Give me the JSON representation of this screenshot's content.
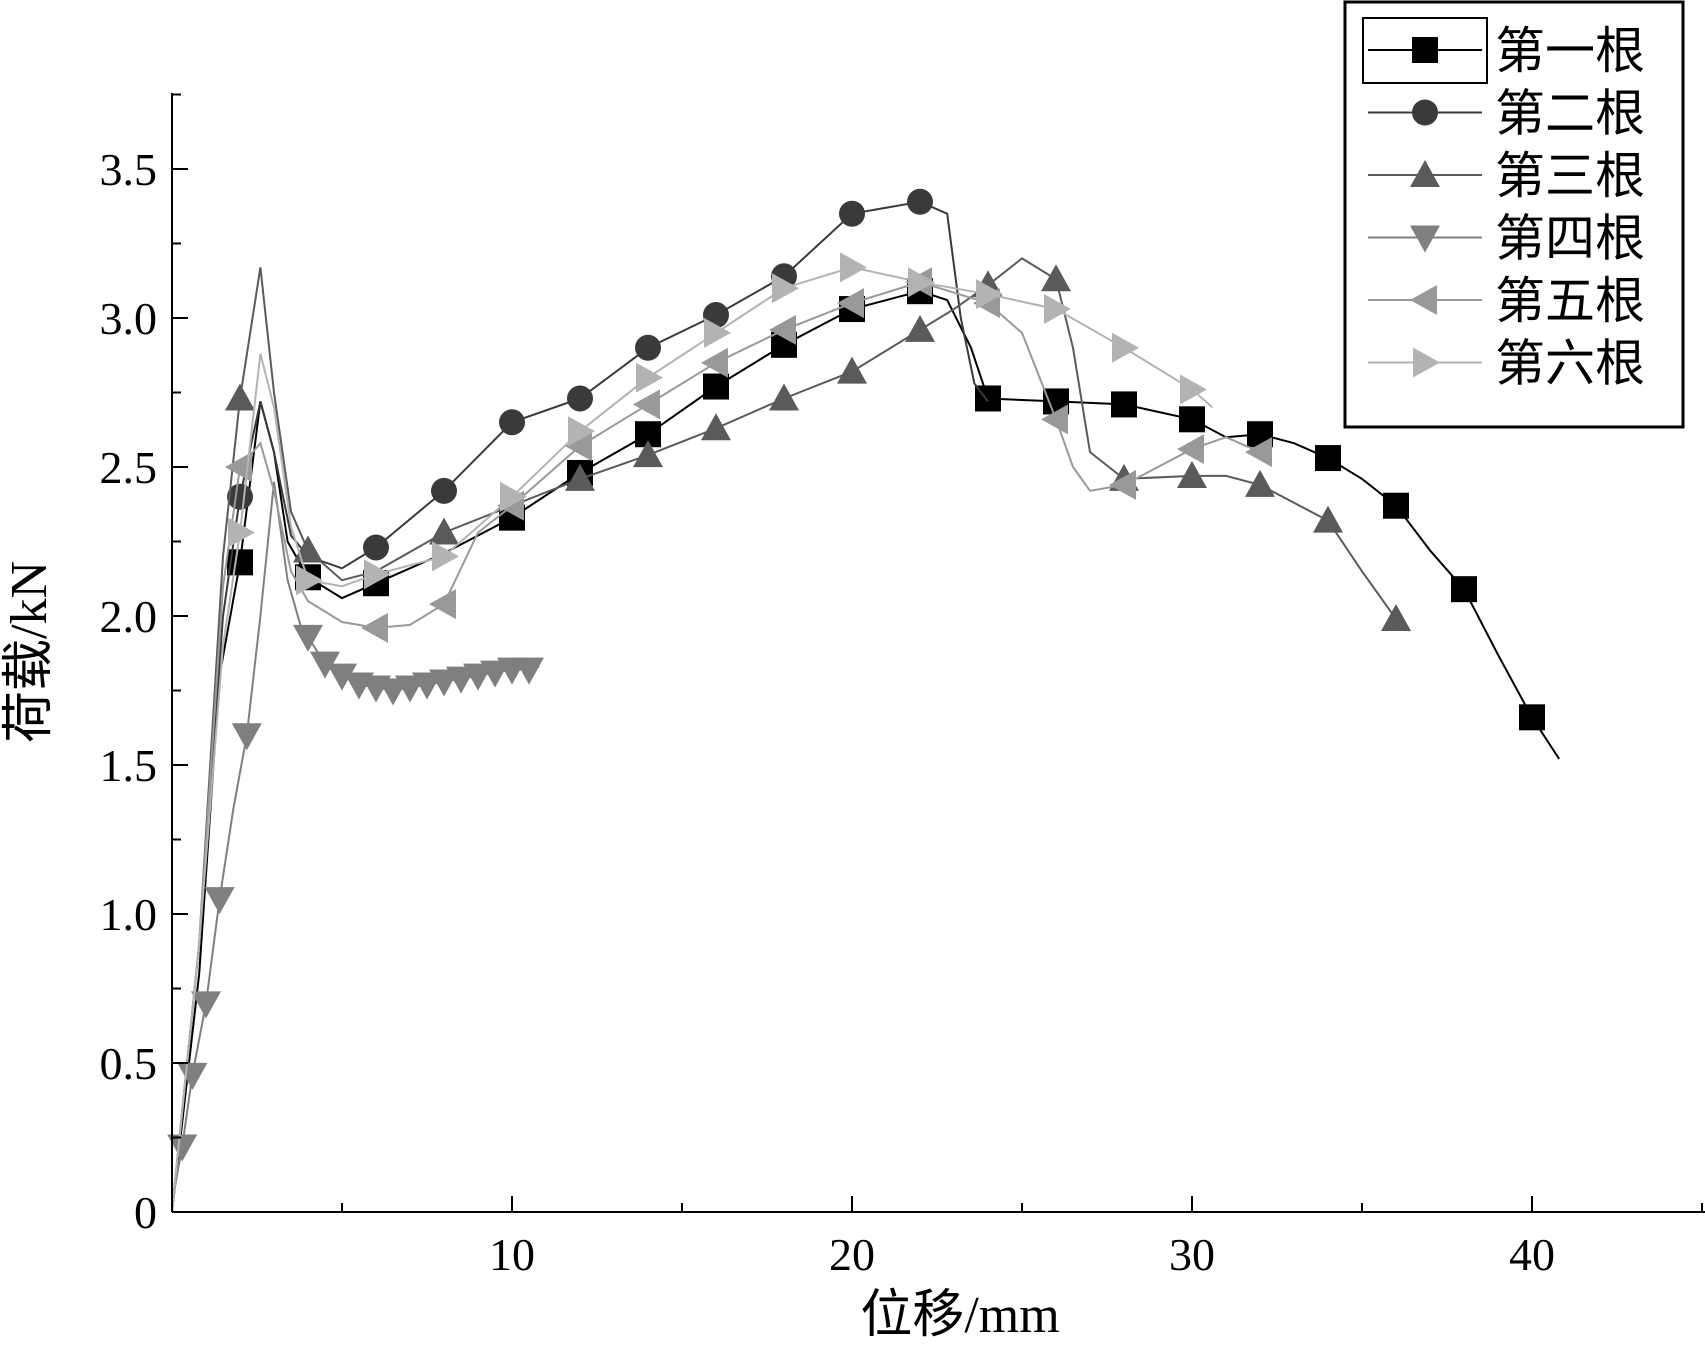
{
  "chart_data": {
    "type": "line",
    "title": "",
    "xlabel": "位移/mm",
    "ylabel": "荷载/kN",
    "xlim": [
      0,
      45
    ],
    "ylim": [
      0,
      3.75
    ],
    "xticks": [
      10,
      20,
      30,
      40
    ],
    "yticks": [
      0,
      0.5,
      1.0,
      1.5,
      2.0,
      2.5,
      3.0,
      3.5
    ],
    "ytick_labels": [
      "0",
      "0.5",
      "1.0",
      "1.5",
      "2.0",
      "2.5",
      "3.0",
      "3.5"
    ],
    "legend_position": "top-right",
    "series": [
      {
        "name": "第一根",
        "marker": "square",
        "color": "#000000",
        "line": [
          [
            0,
            0
          ],
          [
            0.8,
            0.8
          ],
          [
            1.4,
            1.8
          ],
          [
            2.0,
            2.18
          ],
          [
            2.6,
            2.72
          ],
          [
            3.0,
            2.55
          ],
          [
            3.4,
            2.25
          ],
          [
            4.0,
            2.13
          ],
          [
            5.0,
            2.06
          ],
          [
            6.0,
            2.11
          ],
          [
            8.0,
            2.21
          ],
          [
            10.0,
            2.33
          ],
          [
            12.0,
            2.48
          ],
          [
            14.0,
            2.61
          ],
          [
            16.0,
            2.77
          ],
          [
            18.0,
            2.91
          ],
          [
            20.0,
            3.03
          ],
          [
            22.0,
            3.09
          ],
          [
            22.8,
            3.06
          ],
          [
            23.5,
            2.9
          ],
          [
            24.0,
            2.73
          ],
          [
            26.0,
            2.72
          ],
          [
            28.0,
            2.71
          ],
          [
            30.0,
            2.66
          ],
          [
            31.0,
            2.6
          ],
          [
            32.0,
            2.61
          ],
          [
            33.0,
            2.58
          ],
          [
            34.0,
            2.53
          ],
          [
            35.0,
            2.46
          ],
          [
            36.0,
            2.37
          ],
          [
            37.0,
            2.22
          ],
          [
            38.0,
            2.09
          ],
          [
            39.0,
            1.87
          ],
          [
            40.0,
            1.66
          ],
          [
            40.8,
            1.52
          ]
        ],
        "markers": [
          [
            2.0,
            2.18
          ],
          [
            4.0,
            2.13
          ],
          [
            6.0,
            2.11
          ],
          [
            10.0,
            2.33
          ],
          [
            12.0,
            2.48
          ],
          [
            14.0,
            2.61
          ],
          [
            16.0,
            2.77
          ],
          [
            18.0,
            2.91
          ],
          [
            20.0,
            3.03
          ],
          [
            22.0,
            3.09
          ],
          [
            24.0,
            2.73
          ],
          [
            26.0,
            2.72
          ],
          [
            28.0,
            2.71
          ],
          [
            30.0,
            2.66
          ],
          [
            32.0,
            2.61
          ],
          [
            34.0,
            2.53
          ],
          [
            36.0,
            2.37
          ],
          [
            38.0,
            2.09
          ],
          [
            40.0,
            1.66
          ]
        ]
      },
      {
        "name": "第二根",
        "marker": "circle",
        "color": "#3a3a3a",
        "line": [
          [
            0,
            0
          ],
          [
            0.8,
            0.9
          ],
          [
            1.5,
            2.0
          ],
          [
            2.0,
            2.4
          ],
          [
            2.6,
            2.72
          ],
          [
            3.0,
            2.55
          ],
          [
            3.5,
            2.27
          ],
          [
            4.0,
            2.2
          ],
          [
            5.0,
            2.16
          ],
          [
            6.0,
            2.23
          ],
          [
            8.0,
            2.42
          ],
          [
            10.0,
            2.65
          ],
          [
            12.0,
            2.73
          ],
          [
            14.0,
            2.9
          ],
          [
            16.0,
            3.01
          ],
          [
            18.0,
            3.14
          ],
          [
            20.0,
            3.35
          ],
          [
            22.0,
            3.39
          ],
          [
            22.8,
            3.35
          ],
          [
            23.2,
            3.0
          ],
          [
            23.6,
            2.78
          ],
          [
            24.0,
            2.72
          ]
        ],
        "markers": [
          [
            2.0,
            2.4
          ],
          [
            6.0,
            2.23
          ],
          [
            8.0,
            2.42
          ],
          [
            10.0,
            2.65
          ],
          [
            12.0,
            2.73
          ],
          [
            14.0,
            2.9
          ],
          [
            16.0,
            3.01
          ],
          [
            18.0,
            3.14
          ],
          [
            20.0,
            3.35
          ],
          [
            22.0,
            3.39
          ]
        ]
      },
      {
        "name": "第三根",
        "marker": "triangle-up",
        "color": "#5a5a5a",
        "line": [
          [
            0,
            0
          ],
          [
            0.8,
            0.9
          ],
          [
            1.5,
            2.2
          ],
          [
            2.0,
            2.73
          ],
          [
            2.6,
            3.17
          ],
          [
            3.0,
            2.75
          ],
          [
            3.5,
            2.35
          ],
          [
            4.0,
            2.22
          ],
          [
            5.0,
            2.12
          ],
          [
            6.0,
            2.15
          ],
          [
            8.0,
            2.28
          ],
          [
            10.0,
            2.37
          ],
          [
            12.0,
            2.46
          ],
          [
            14.0,
            2.54
          ],
          [
            16.0,
            2.63
          ],
          [
            18.0,
            2.73
          ],
          [
            20.0,
            2.82
          ],
          [
            22.0,
            2.96
          ],
          [
            23.0,
            3.03
          ],
          [
            24.0,
            3.11
          ],
          [
            25.0,
            3.2
          ],
          [
            26.0,
            3.13
          ],
          [
            26.5,
            2.9
          ],
          [
            27.0,
            2.55
          ],
          [
            28.0,
            2.46
          ],
          [
            30.0,
            2.47
          ],
          [
            31.0,
            2.47
          ],
          [
            32.0,
            2.44
          ],
          [
            33.0,
            2.38
          ],
          [
            34.0,
            2.32
          ],
          [
            35.0,
            2.15
          ],
          [
            36.0,
            1.99
          ],
          [
            36.4,
            1.95
          ]
        ],
        "markers": [
          [
            2.0,
            2.73
          ],
          [
            4.0,
            2.22
          ],
          [
            8.0,
            2.28
          ],
          [
            12.0,
            2.46
          ],
          [
            14.0,
            2.54
          ],
          [
            16.0,
            2.63
          ],
          [
            18.0,
            2.73
          ],
          [
            20.0,
            2.82
          ],
          [
            22.0,
            2.96
          ],
          [
            24.0,
            3.11
          ],
          [
            26.0,
            3.13
          ],
          [
            28.0,
            2.46
          ],
          [
            30.0,
            2.47
          ],
          [
            32.0,
            2.44
          ],
          [
            34.0,
            2.32
          ],
          [
            36.0,
            1.99
          ]
        ]
      },
      {
        "name": "第四根",
        "marker": "triangle-down",
        "color": "#7f7f7f",
        "line": [
          [
            0,
            0.03
          ],
          [
            0.3,
            0.22
          ],
          [
            0.6,
            0.46
          ],
          [
            1.0,
            0.7
          ],
          [
            1.4,
            1.05
          ],
          [
            1.8,
            1.35
          ],
          [
            2.2,
            1.6
          ],
          [
            2.6,
            2.0
          ],
          [
            3.0,
            2.45
          ],
          [
            3.4,
            2.12
          ],
          [
            3.8,
            1.96
          ],
          [
            4.0,
            1.93
          ],
          [
            4.5,
            1.84
          ],
          [
            5.0,
            1.8
          ],
          [
            5.5,
            1.77
          ],
          [
            6.0,
            1.76
          ],
          [
            6.5,
            1.75
          ],
          [
            7.0,
            1.76
          ],
          [
            7.5,
            1.77
          ],
          [
            8.0,
            1.78
          ],
          [
            8.5,
            1.79
          ],
          [
            9.0,
            1.8
          ],
          [
            9.5,
            1.81
          ],
          [
            10.0,
            1.82
          ],
          [
            10.5,
            1.82
          ],
          [
            10.8,
            1.83
          ]
        ],
        "markers": [
          [
            0.3,
            0.22
          ],
          [
            0.6,
            0.46
          ],
          [
            1.0,
            0.7
          ],
          [
            1.4,
            1.05
          ],
          [
            2.2,
            1.6
          ],
          [
            4.0,
            1.93
          ],
          [
            4.5,
            1.84
          ],
          [
            5.0,
            1.8
          ],
          [
            5.5,
            1.77
          ],
          [
            6.0,
            1.76
          ],
          [
            6.5,
            1.75
          ],
          [
            7.0,
            1.76
          ],
          [
            7.5,
            1.77
          ],
          [
            8.0,
            1.78
          ],
          [
            8.5,
            1.79
          ],
          [
            9.0,
            1.8
          ],
          [
            9.5,
            1.81
          ],
          [
            10.0,
            1.82
          ],
          [
            10.5,
            1.82
          ]
        ]
      },
      {
        "name": "第五根",
        "marker": "triangle-left",
        "color": "#999999",
        "line": [
          [
            0,
            0
          ],
          [
            0.8,
            0.9
          ],
          [
            1.5,
            2.1
          ],
          [
            2.0,
            2.5
          ],
          [
            2.6,
            2.58
          ],
          [
            3.0,
            2.42
          ],
          [
            3.5,
            2.15
          ],
          [
            4.0,
            2.05
          ],
          [
            5.0,
            1.98
          ],
          [
            6.0,
            1.96
          ],
          [
            7.0,
            1.97
          ],
          [
            8.0,
            2.04
          ],
          [
            9.0,
            2.28
          ],
          [
            10.0,
            2.37
          ],
          [
            12.0,
            2.57
          ],
          [
            14.0,
            2.71
          ],
          [
            16.0,
            2.85
          ],
          [
            18.0,
            2.96
          ],
          [
            20.0,
            3.05
          ],
          [
            22.0,
            3.12
          ],
          [
            24.0,
            3.05
          ],
          [
            25.0,
            2.95
          ],
          [
            26.0,
            2.66
          ],
          [
            26.5,
            2.5
          ],
          [
            27.0,
            2.42
          ],
          [
            28.0,
            2.44
          ],
          [
            29.0,
            2.5
          ],
          [
            30.0,
            2.56
          ],
          [
            31.0,
            2.6
          ],
          [
            32.0,
            2.55
          ]
        ],
        "markers": [
          [
            2.0,
            2.5
          ],
          [
            6.0,
            1.96
          ],
          [
            8.0,
            2.04
          ],
          [
            10.0,
            2.37
          ],
          [
            12.0,
            2.57
          ],
          [
            14.0,
            2.71
          ],
          [
            16.0,
            2.85
          ],
          [
            18.0,
            2.96
          ],
          [
            20.0,
            3.05
          ],
          [
            22.0,
            3.12
          ],
          [
            24.0,
            3.05
          ],
          [
            26.0,
            2.66
          ],
          [
            28.0,
            2.44
          ],
          [
            30.0,
            2.56
          ],
          [
            32.0,
            2.55
          ]
        ]
      },
      {
        "name": "第六根",
        "marker": "triangle-right",
        "color": "#b3b3b3",
        "line": [
          [
            0,
            0
          ],
          [
            0.8,
            0.9
          ],
          [
            1.5,
            1.9
          ],
          [
            2.0,
            2.28
          ],
          [
            2.6,
            2.88
          ],
          [
            3.0,
            2.7
          ],
          [
            3.5,
            2.3
          ],
          [
            4.0,
            2.12
          ],
          [
            5.0,
            2.1
          ],
          [
            6.0,
            2.14
          ],
          [
            8.0,
            2.2
          ],
          [
            10.0,
            2.4
          ],
          [
            12.0,
            2.62
          ],
          [
            14.0,
            2.8
          ],
          [
            16.0,
            2.95
          ],
          [
            18.0,
            3.1
          ],
          [
            20.0,
            3.17
          ],
          [
            22.0,
            3.12
          ],
          [
            24.0,
            3.08
          ],
          [
            26.0,
            3.03
          ],
          [
            28.0,
            2.9
          ],
          [
            30.0,
            2.76
          ],
          [
            30.6,
            2.7
          ]
        ],
        "markers": [
          [
            2.0,
            2.28
          ],
          [
            4.0,
            2.12
          ],
          [
            6.0,
            2.14
          ],
          [
            8.0,
            2.2
          ],
          [
            10.0,
            2.4
          ],
          [
            12.0,
            2.62
          ],
          [
            14.0,
            2.8
          ],
          [
            16.0,
            2.95
          ],
          [
            18.0,
            3.1
          ],
          [
            20.0,
            3.17
          ],
          [
            22.0,
            3.12
          ],
          [
            24.0,
            3.08
          ],
          [
            26.0,
            3.03
          ],
          [
            28.0,
            2.9
          ],
          [
            30.0,
            2.76
          ]
        ]
      }
    ]
  }
}
